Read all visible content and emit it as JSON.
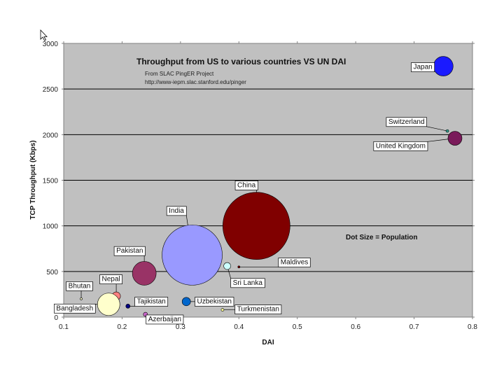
{
  "cursor_icon": "mouse-pointer-icon",
  "chart_data": {
    "type": "scatter",
    "title": "Throughput from US to various countries VS UN DAI",
    "subtitle_lines": [
      "From SLAC PingER Project",
      "http://www-iepm.slac.stanford.edu/pinger"
    ],
    "xlabel": "DAI",
    "ylabel": "TCP Throughput (Kbps)",
    "xlim": [
      0.1,
      0.8
    ],
    "ylim": [
      0,
      3000
    ],
    "x_ticks": [
      "0.1",
      "0.2",
      "0.3",
      "0.4",
      "0.5",
      "0.6",
      "0.7",
      "0.8"
    ],
    "y_ticks": [
      "0",
      "500",
      "1000",
      "1500",
      "2000",
      "2500",
      "3000"
    ],
    "grid": "horizontal",
    "background": "#c0c0c0",
    "note": "Dot Size = Population",
    "points": [
      {
        "name": "Japan",
        "x": 0.75,
        "y": 2750,
        "size": 14,
        "color": "#1a1aff"
      },
      {
        "name": "Switzerland",
        "x": 0.757,
        "y": 2040,
        "size": 2,
        "color": "#2f9a8a"
      },
      {
        "name": "United Kingdom",
        "x": 0.77,
        "y": 1960,
        "size": 10,
        "color": "#7a1a5a"
      },
      {
        "name": "China",
        "x": 0.43,
        "y": 1000,
        "size": 48,
        "color": "#800000"
      },
      {
        "name": "India",
        "x": 0.32,
        "y": 680,
        "size": 43,
        "color": "#9999ff"
      },
      {
        "name": "Maldives",
        "x": 0.4,
        "y": 550,
        "size": 1,
        "color": "#800000"
      },
      {
        "name": "Sri Lanka",
        "x": 0.38,
        "y": 560,
        "size": 5,
        "color": "#ccffff"
      },
      {
        "name": "Pakistan",
        "x": 0.238,
        "y": 480,
        "size": 17,
        "color": "#993366"
      },
      {
        "name": "Nepal",
        "x": 0.19,
        "y": 230,
        "size": 6,
        "color": "#ff8080"
      },
      {
        "name": "Bhutan",
        "x": 0.13,
        "y": 200,
        "size": 1,
        "color": "#ffffcc"
      },
      {
        "name": "Bangladesh",
        "x": 0.177,
        "y": 140,
        "size": 16,
        "color": "#ffffcc"
      },
      {
        "name": "Tajikistan",
        "x": 0.21,
        "y": 120,
        "size": 3,
        "color": "#000080"
      },
      {
        "name": "Uzbekistan",
        "x": 0.31,
        "y": 170,
        "size": 6,
        "color": "#0066cc"
      },
      {
        "name": "Turkmenistan",
        "x": 0.372,
        "y": 80,
        "size": 2,
        "color": "#ffff99"
      },
      {
        "name": "Azerbaijan",
        "x": 0.24,
        "y": 30,
        "size": 3,
        "color": "#cc66cc"
      }
    ],
    "labels": [
      {
        "text": "Japan",
        "anchor_x": 0.715,
        "anchor_y": 2750,
        "point": "Japan"
      },
      {
        "text": "Switzerland",
        "anchor_x": 0.687,
        "anchor_y": 2150,
        "point": "Switzerland"
      },
      {
        "text": "United Kingdom",
        "anchor_x": 0.677,
        "anchor_y": 1885,
        "point": "United Kingdom"
      },
      {
        "text": "China",
        "anchor_x": 0.413,
        "anchor_y": 1455,
        "point": "China"
      },
      {
        "text": "India",
        "anchor_x": 0.293,
        "anchor_y": 1175,
        "point": "India"
      },
      {
        "text": "Pakistan",
        "anchor_x": 0.213,
        "anchor_y": 735,
        "point": "Pakistan"
      },
      {
        "text": "Maldives",
        "anchor_x": 0.495,
        "anchor_y": 610,
        "point": "Maldives"
      },
      {
        "text": "Sri Lanka",
        "anchor_x": 0.415,
        "anchor_y": 385,
        "point": "Sri Lanka"
      },
      {
        "text": "Nepal",
        "anchor_x": 0.181,
        "anchor_y": 425,
        "point": "Nepal"
      },
      {
        "text": "Bhutan",
        "anchor_x": 0.127,
        "anchor_y": 350,
        "point": "Bhutan"
      },
      {
        "text": "Bangladesh",
        "anchor_x": 0.119,
        "anchor_y": 105,
        "point": "Bangladesh"
      },
      {
        "text": "Tajikistan",
        "anchor_x": 0.25,
        "anchor_y": 180,
        "point": "Tajikistan"
      },
      {
        "text": "Uzbekistan",
        "anchor_x": 0.358,
        "anchor_y": 180,
        "point": "Uzbekistan"
      },
      {
        "text": "Turkmenistan",
        "anchor_x": 0.433,
        "anchor_y": 95,
        "point": "Turkmenistan"
      },
      {
        "text": "Azerbaijan",
        "anchor_x": 0.273,
        "anchor_y": -15,
        "point": "Azerbaijan"
      }
    ]
  }
}
